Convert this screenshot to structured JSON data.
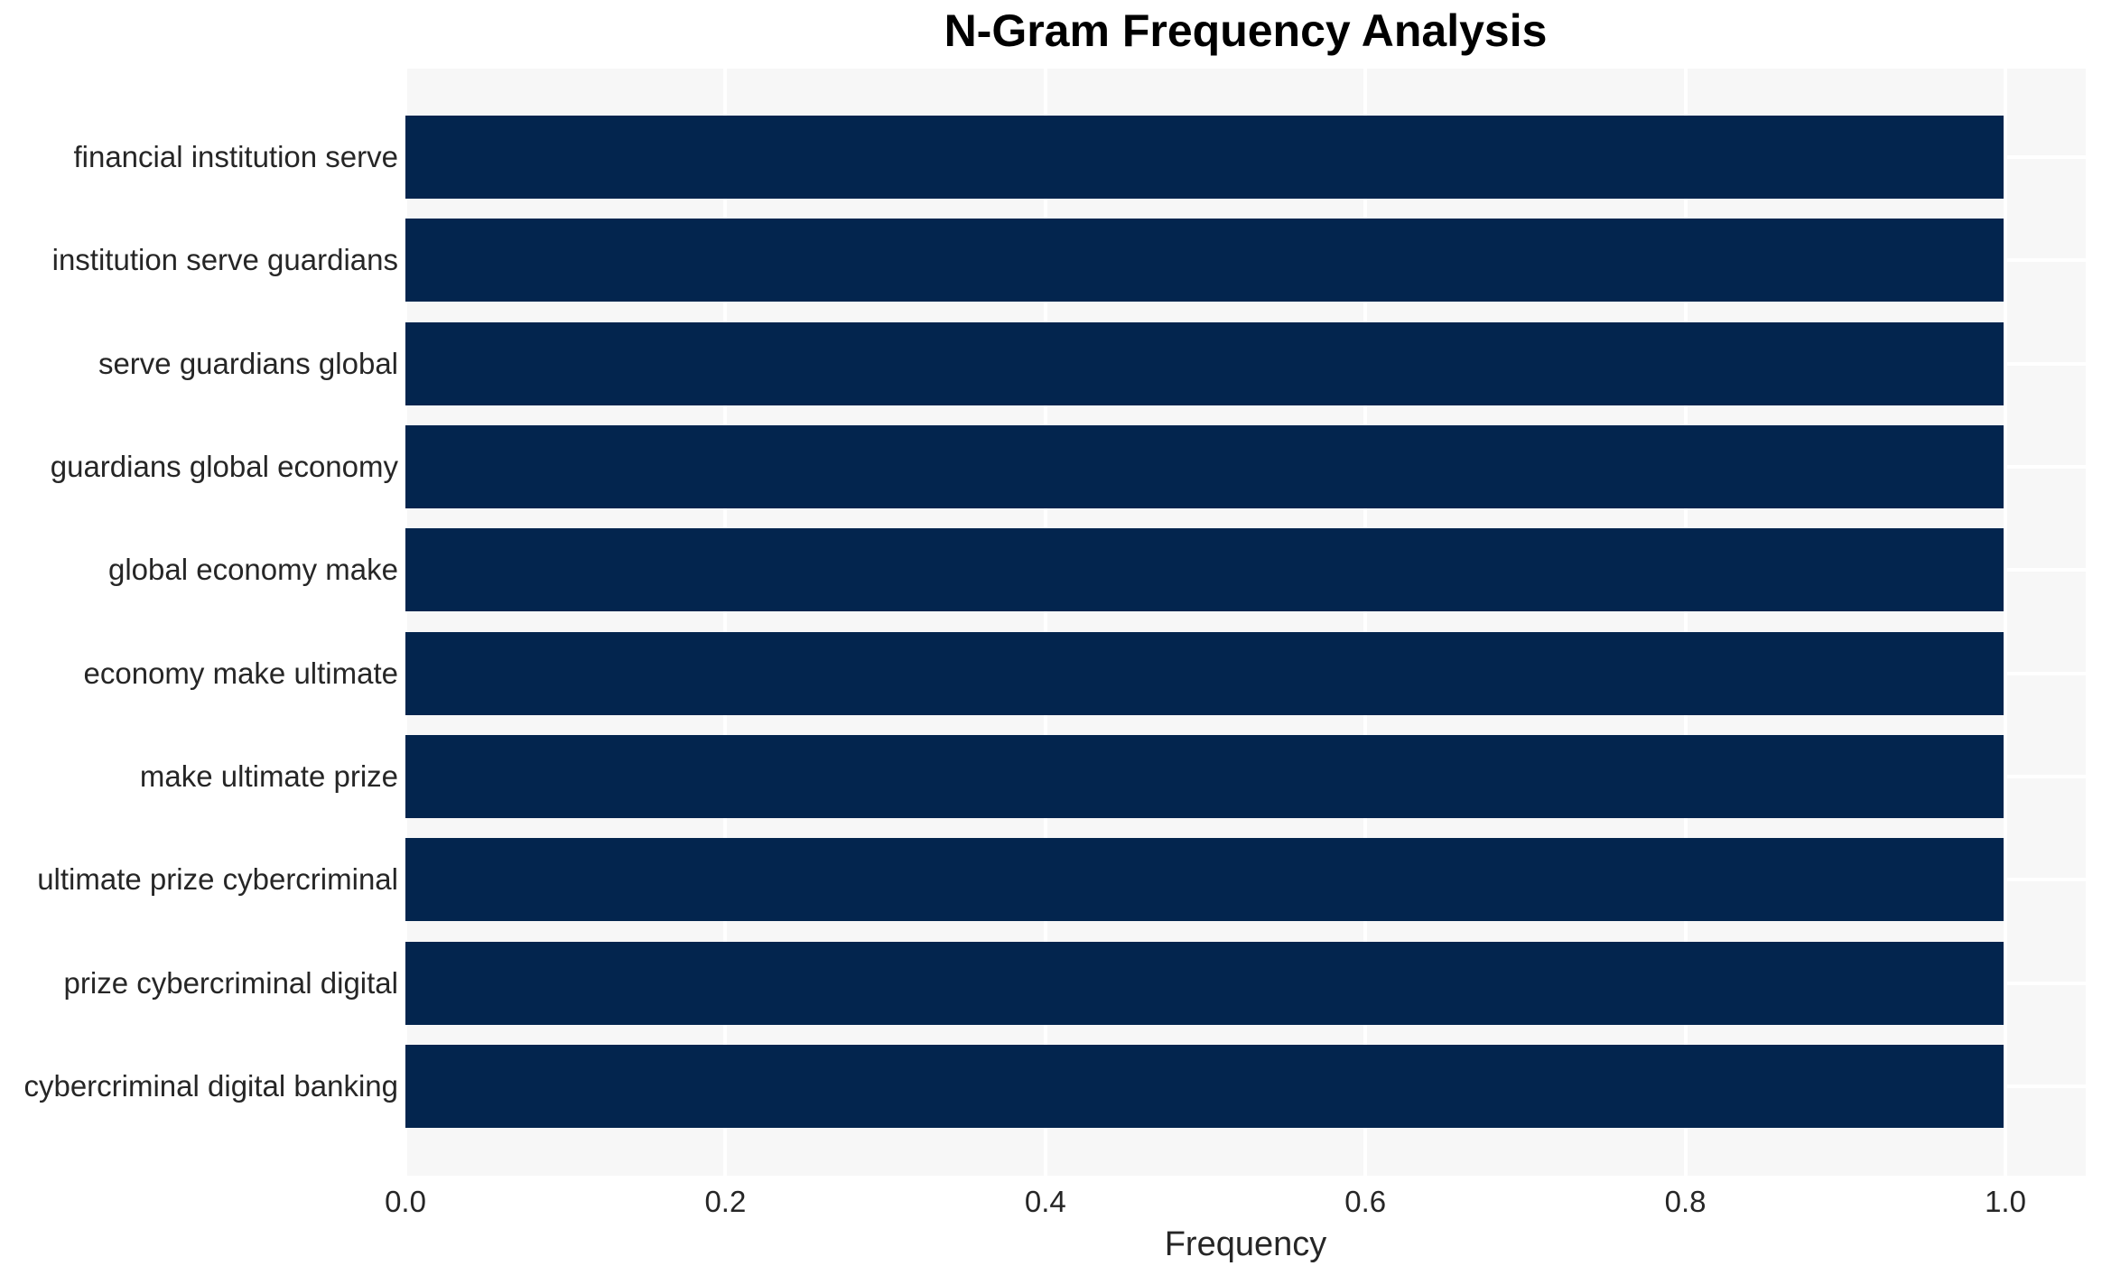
{
  "chart_data": {
    "type": "bar",
    "orientation": "horizontal",
    "title": "N-Gram Frequency Analysis",
    "xlabel": "Frequency",
    "ylabel": "",
    "categories": [
      "financial institution serve",
      "institution serve guardians",
      "serve guardians global",
      "guardians global economy",
      "global economy make",
      "economy make ultimate",
      "make ultimate prize",
      "ultimate prize cybercriminal",
      "prize cybercriminal digital",
      "cybercriminal digital banking"
    ],
    "values": [
      1.0,
      1.0,
      1.0,
      1.0,
      1.0,
      1.0,
      1.0,
      1.0,
      1.0,
      1.0
    ],
    "xlim": [
      0.0,
      1.05
    ],
    "xticks": {
      "values": [
        0.0,
        0.2,
        0.4,
        0.6,
        0.8,
        1.0
      ],
      "labels": [
        "0.0",
        "0.2",
        "0.4",
        "0.6",
        "0.8",
        "1.0"
      ]
    },
    "grid": true,
    "legend": false,
    "colors": {
      "bar": "#03254e",
      "plot_background": "#f7f7f7",
      "grid": "#ffffff",
      "title_text": "#000000",
      "tick_text": "#262626"
    }
  }
}
